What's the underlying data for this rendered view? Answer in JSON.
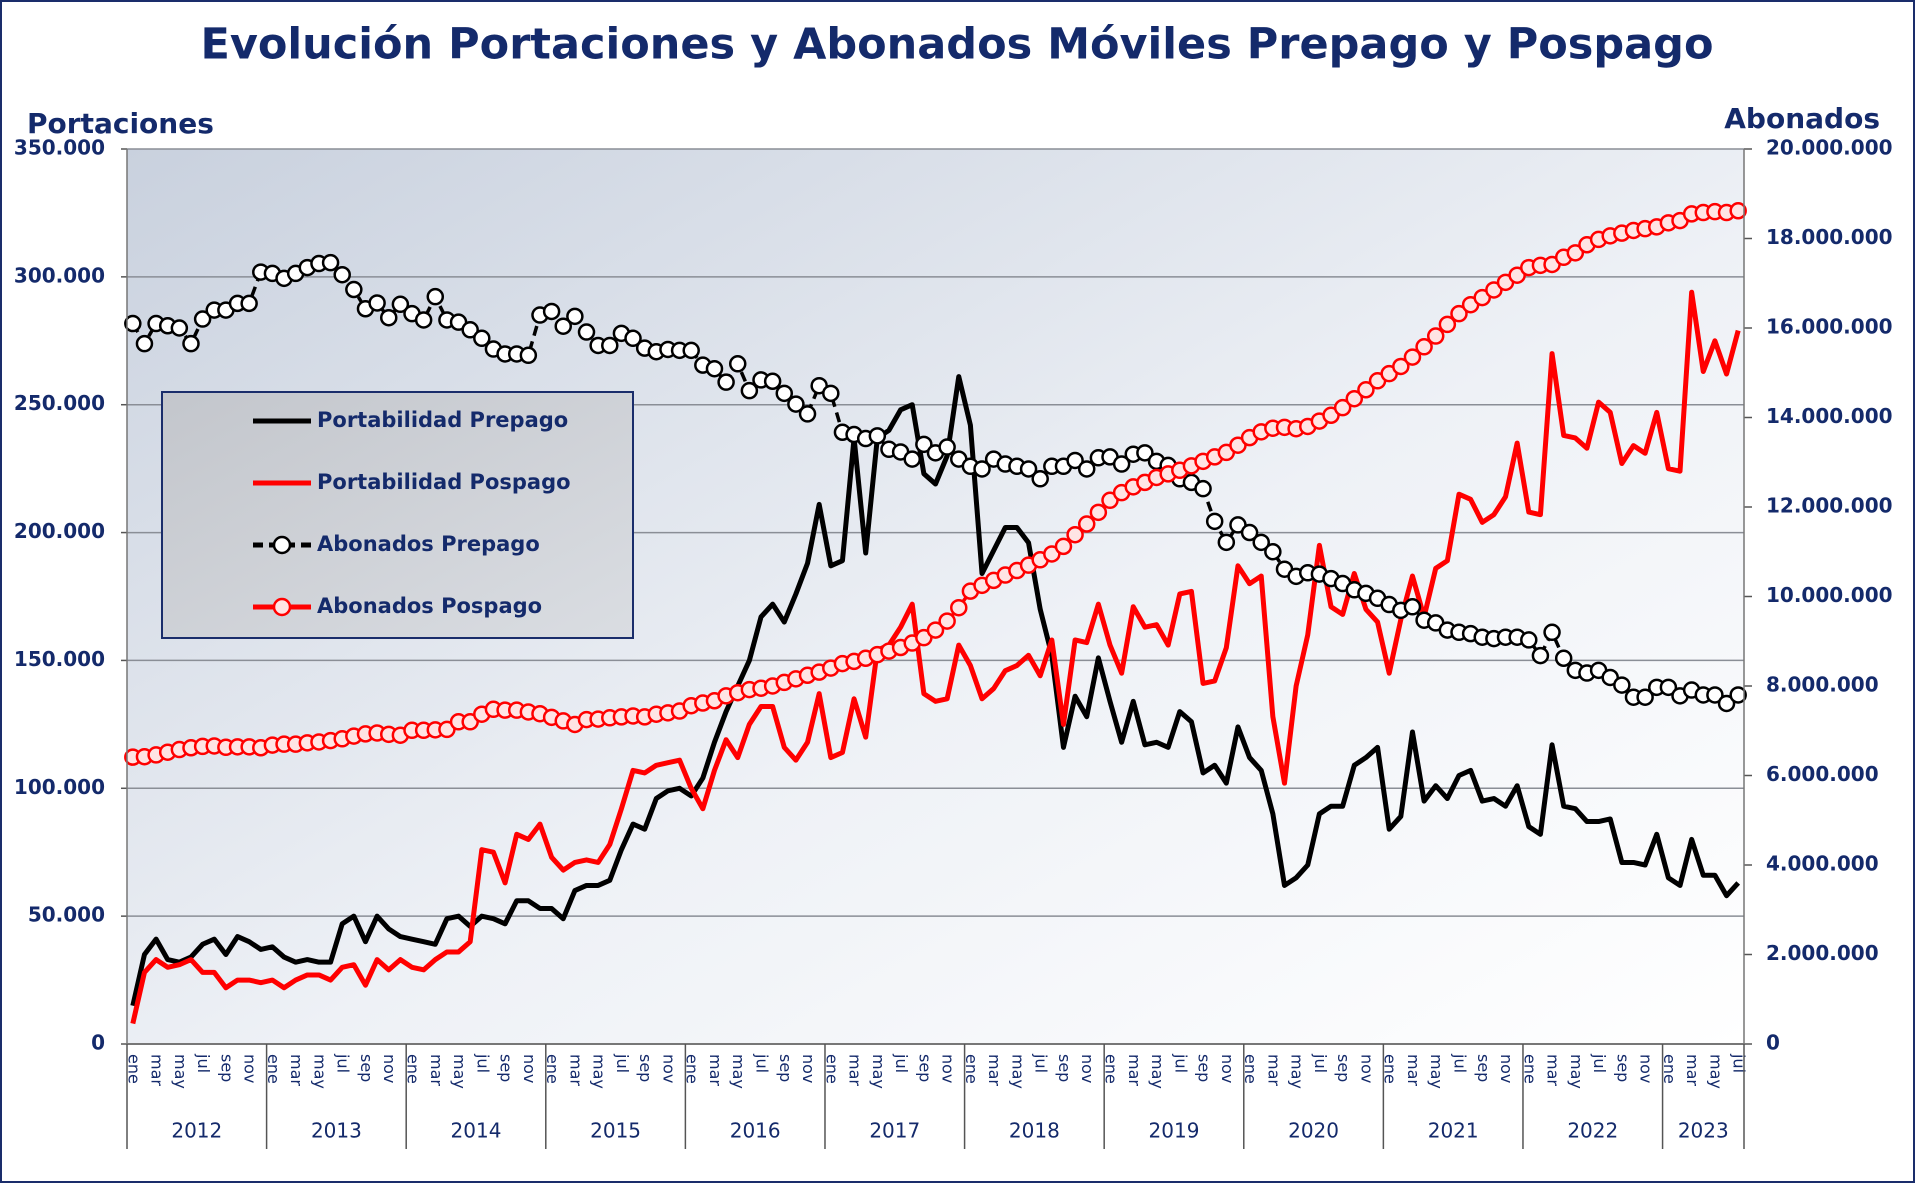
{
  "chart_data": {
    "type": "line",
    "title": "Evolución Portaciones y Abonados Móviles Prepago y Pospago",
    "y_label": "Portaciones",
    "y2_label": "Abonados",
    "categories": [
      "ene",
      null,
      "mar",
      null,
      "may",
      null,
      "jul",
      null,
      "sep",
      null,
      "nov",
      null,
      "ene",
      null,
      "mar",
      null,
      "may",
      null,
      "jul",
      null,
      "sep",
      null,
      "nov",
      null,
      "ene",
      null,
      "mar",
      null,
      "may",
      null,
      "jul",
      null,
      "sep",
      null,
      "nov",
      null,
      "ene",
      null,
      "mar",
      null,
      "may",
      null,
      "jul",
      null,
      "sep",
      null,
      "nov",
      null,
      "ene",
      null,
      "mar",
      null,
      "may",
      null,
      "jul",
      null,
      "sep",
      null,
      "nov",
      null,
      "ene",
      null,
      "mar",
      null,
      "may",
      null,
      "jul",
      null,
      "sep",
      null,
      "nov",
      null,
      "ene",
      null,
      "mar",
      null,
      "may",
      null,
      "jul",
      null,
      "sep",
      null,
      "nov",
      null,
      "ene",
      null,
      "mar",
      null,
      "may",
      null,
      "jul",
      null,
      "sep",
      null,
      "nov",
      null,
      "ene",
      null,
      "mar",
      null,
      "may",
      null,
      "jul",
      null,
      "sep",
      null,
      "nov",
      null,
      "ene",
      null,
      "mar",
      null,
      "may",
      null,
      "jul",
      null,
      "sep",
      null,
      "nov",
      null,
      "ene",
      null,
      "mar",
      null,
      "may",
      null,
      "jul",
      null,
      "sep",
      null,
      "nov",
      null,
      "ene",
      null,
      "mar",
      null,
      "may",
      null,
      "jul"
    ],
    "years": [
      "2012",
      "2013",
      "2014",
      "2015",
      "2016",
      "2017",
      "2018",
      "2019",
      "2020",
      "2021",
      "2022",
      "2023"
    ],
    "ylim": [
      0,
      350000
    ],
    "yticks": [
      0,
      {
        "value": 50000,
        "label": "50.000"
      },
      {
        "value": 100000,
        "label": "100.000"
      },
      {
        "value": 150000,
        "label": "150.000"
      },
      {
        "value": 200000,
        "label": "200.000"
      },
      {
        "value": 250000,
        "label": "250.000"
      },
      {
        "value": 300000,
        "label": "300.000"
      },
      {
        "value": 350000,
        "label": "350.000"
      }
    ],
    "y2lim": [
      0,
      20000000
    ],
    "y2ticks": [
      0,
      {
        "value": 2000000,
        "label": "2.000.000"
      },
      {
        "value": 4000000,
        "label": "4.000.000"
      },
      {
        "value": 6000000,
        "label": "6.000.000"
      },
      {
        "value": 8000000,
        "label": "8.000.000"
      },
      {
        "value": 10000000,
        "label": "10.000.000"
      },
      {
        "value": 12000000,
        "label": "12.000.000"
      },
      {
        "value": 14000000,
        "label": "14.000.000"
      },
      {
        "value": 16000000,
        "label": "16.000.000"
      },
      {
        "value": 18000000,
        "label": "18.000.000"
      },
      {
        "value": 20000000,
        "label": "20.000.000"
      }
    ],
    "grid": true,
    "legend": "upper left",
    "series": [
      {
        "name": "Portabilidad Prepago",
        "color": "#000000",
        "values": [
          15000,
          35000,
          41000,
          33000,
          32000,
          34000,
          39000,
          41000,
          35000,
          42000,
          40000,
          37000,
          38000,
          34000,
          32000,
          33000,
          32000,
          32000,
          47000,
          50000,
          40000,
          50000,
          45000,
          42000,
          41000,
          40000,
          39000,
          49000,
          50000,
          46000,
          50000,
          49000,
          47000,
          56000,
          56000,
          53000,
          53000,
          49000,
          60000,
          62000,
          62000,
          64000,
          76000,
          86000,
          84000,
          96000,
          99000,
          100000,
          97000,
          104000,
          118000,
          130000,
          140000,
          150000,
          167000,
          172000,
          165000,
          176000,
          188000,
          211000,
          187000,
          189000,
          237000,
          192000,
          237000,
          240000,
          248000,
          250000,
          223000,
          219000,
          230000,
          261000,
          242000,
          184000,
          193000,
          202000,
          202000,
          196000,
          170000,
          152000,
          116000,
          136000,
          128000,
          151000,
          134000,
          118000,
          134000,
          117000,
          118000,
          116000,
          130000,
          126000,
          106000,
          109000,
          102000,
          124000,
          112000,
          107000,
          90000,
          62000,
          65000,
          70000,
          90000,
          93000,
          93000,
          109000,
          112000,
          116000,
          84000,
          89000,
          122000,
          95000,
          101000,
          96000,
          105000,
          107000,
          95000,
          96000,
          93000,
          101000,
          85000,
          82000,
          117000,
          93000,
          92000,
          87000,
          87000,
          88000,
          71000,
          71000,
          70000,
          82000,
          65000,
          62000,
          80000,
          66000,
          66000,
          58000,
          63000
        ]
      },
      {
        "name": "Portabilidad Pospago",
        "color": "#ff0000",
        "values": [
          8000,
          28000,
          33000,
          30000,
          31000,
          33000,
          28000,
          28000,
          22000,
          25000,
          25000,
          24000,
          25000,
          22000,
          25000,
          27000,
          27000,
          25000,
          30000,
          31000,
          23000,
          33000,
          29000,
          33000,
          30000,
          29000,
          33000,
          36000,
          36000,
          40000,
          76000,
          75000,
          63000,
          82000,
          80000,
          86000,
          73000,
          68000,
          71000,
          72000,
          71000,
          78000,
          92000,
          107000,
          106000,
          109000,
          110000,
          111000,
          100000,
          92000,
          107000,
          119000,
          112000,
          125000,
          132000,
          132000,
          116000,
          111000,
          118000,
          137000,
          112000,
          114000,
          135000,
          120000,
          154000,
          156000,
          163000,
          172000,
          137000,
          134000,
          135000,
          156000,
          148000,
          135000,
          139000,
          146000,
          148000,
          152000,
          144000,
          158000,
          125000,
          158000,
          157000,
          172000,
          156000,
          145000,
          171000,
          163000,
          164000,
          156000,
          176000,
          177000,
          141000,
          142000,
          155000,
          187000,
          180000,
          183000,
          128000,
          102000,
          140000,
          160000,
          195000,
          171000,
          168000,
          184000,
          170000,
          165000,
          145000,
          166000,
          183000,
          167000,
          186000,
          189000,
          215000,
          213000,
          204000,
          207000,
          214000,
          235000,
          208000,
          207000,
          270000,
          238000,
          237000,
          233000,
          251000,
          247000,
          227000,
          234000,
          231000,
          247000,
          225000,
          224000,
          294000,
          263000,
          275000,
          262000,
          279000
        ]
      },
      {
        "name": "Abonados Prepago",
        "color": "#000000",
        "axis": "y2",
        "dashed": true,
        "marker": true,
        "marker_fill": "#ffffff",
        "values": [
          16100000,
          15650000,
          16100000,
          16050000,
          16000000,
          15650000,
          16200000,
          16400000,
          16400000,
          16550000,
          16550000,
          17250000,
          17220000,
          17110000,
          17220000,
          17350000,
          17440000,
          17460000,
          17190000,
          16860000,
          16430000,
          16560000,
          16230000,
          16530000,
          16320000,
          16180000,
          16700000,
          16180000,
          16130000,
          15960000,
          15770000,
          15530000,
          15420000,
          15420000,
          15390000,
          16290000,
          16370000,
          16040000,
          16260000,
          15910000,
          15610000,
          15610000,
          15880000,
          15770000,
          15550000,
          15470000,
          15520000,
          15500000,
          15500000,
          15170000,
          15090000,
          14790000,
          15200000,
          14600000,
          14840000,
          14810000,
          14540000,
          14300000,
          14080000,
          14710000,
          14540000,
          13670000,
          13620000,
          13530000,
          13590000,
          13290000,
          13230000,
          13070000,
          13400000,
          13210000,
          13340000,
          13070000,
          12910000,
          12850000,
          13070000,
          12960000,
          12910000,
          12850000,
          12630000,
          12910000,
          12910000,
          13040000,
          12850000,
          13100000,
          13120000,
          12960000,
          13180000,
          13210000,
          13020000,
          12930000,
          12630000,
          12550000,
          12410000,
          11680000,
          11210000,
          11600000,
          11430000,
          11210000,
          11000000,
          10610000,
          10450000,
          10530000,
          10500000,
          10400000,
          10290000,
          10150000,
          10070000,
          9960000,
          9820000,
          9690000,
          9770000,
          9470000,
          9410000,
          9250000,
          9200000,
          9170000,
          9090000,
          9060000,
          9090000,
          9090000,
          9030000,
          8680000,
          9200000,
          8620000,
          8350000,
          8290000,
          8350000,
          8190000,
          8020000,
          7750000,
          7750000,
          7970000,
          7970000,
          7780000,
          7910000,
          7800000,
          7800000,
          7610000,
          7800000
        ]
      },
      {
        "name": "Abonados Pospago",
        "color": "#ff0000",
        "axis": "y2",
        "marker": true,
        "marker_fill": "#ffe4e4",
        "values": [
          6410000,
          6420000,
          6460000,
          6520000,
          6580000,
          6620000,
          6650000,
          6660000,
          6630000,
          6640000,
          6640000,
          6620000,
          6680000,
          6700000,
          6700000,
          6730000,
          6750000,
          6780000,
          6820000,
          6880000,
          6930000,
          6950000,
          6920000,
          6900000,
          7010000,
          7010000,
          7020000,
          7030000,
          7200000,
          7200000,
          7370000,
          7480000,
          7460000,
          7460000,
          7420000,
          7380000,
          7300000,
          7220000,
          7140000,
          7250000,
          7260000,
          7290000,
          7310000,
          7330000,
          7310000,
          7370000,
          7400000,
          7440000,
          7560000,
          7620000,
          7670000,
          7780000,
          7850000,
          7920000,
          7950000,
          8000000,
          8080000,
          8160000,
          8240000,
          8310000,
          8400000,
          8500000,
          8550000,
          8620000,
          8700000,
          8780000,
          8860000,
          8960000,
          9080000,
          9250000,
          9450000,
          9750000,
          10120000,
          10250000,
          10360000,
          10480000,
          10580000,
          10700000,
          10820000,
          10950000,
          11120000,
          11380000,
          11620000,
          11880000,
          12150000,
          12320000,
          12450000,
          12550000,
          12660000,
          12740000,
          12820000,
          12920000,
          13020000,
          13120000,
          13220000,
          13380000,
          13550000,
          13680000,
          13760000,
          13780000,
          13750000,
          13800000,
          13920000,
          14050000,
          14220000,
          14420000,
          14620000,
          14820000,
          14980000,
          15140000,
          15350000,
          15580000,
          15820000,
          16080000,
          16320000,
          16520000,
          16680000,
          16850000,
          17020000,
          17180000,
          17350000,
          17400000,
          17420000,
          17580000,
          17680000,
          17860000,
          17980000,
          18060000,
          18120000,
          18180000,
          18220000,
          18260000,
          18350000,
          18400000,
          18550000,
          18580000,
          18600000,
          18580000,
          18620000
        ]
      }
    ]
  }
}
